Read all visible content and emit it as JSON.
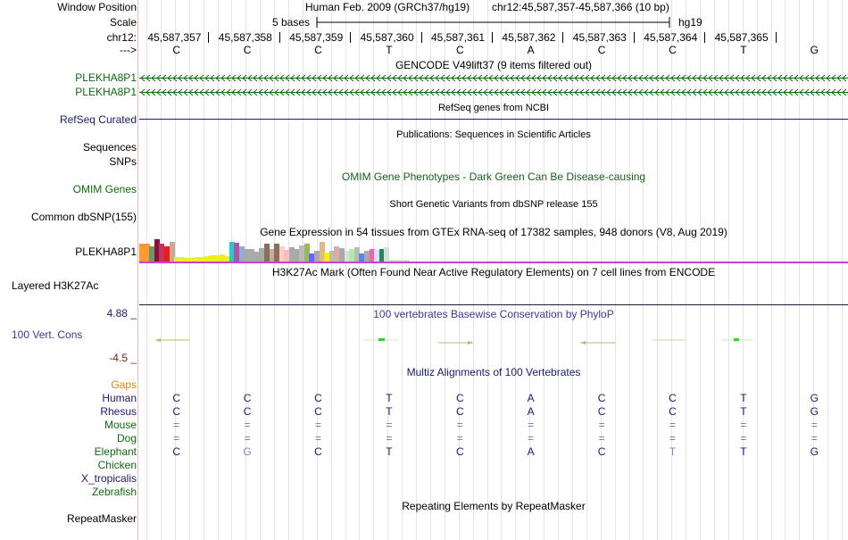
{
  "labels": {
    "window_position": "Window Position",
    "scale": "Scale",
    "chrom": "chr12:",
    "arrow": "--->",
    "plekha1": "PLEKHA8P1",
    "plekha2": "PLEKHA8P1",
    "refseq": "RefSeq Curated",
    "sequences": "Sequences",
    "snps": "SNPs",
    "omim": "OMIM Genes",
    "dbsnp": "Common dbSNP(155)",
    "gtex_gene": "PLEKHA8P1",
    "h3k27ac": "Layered H3K27Ac",
    "cons_max": "4.88 _",
    "cons_label": "100 Vert. Cons",
    "cons_min": "-4.5 _",
    "gaps": "Gaps",
    "species": [
      "Human",
      "Rhesus",
      "Mouse",
      "Dog",
      "Elephant",
      "Chicken",
      "X_tropicalis",
      "Zebrafish"
    ],
    "repeatmasker": "RepeatMasker"
  },
  "header": {
    "assembly": "Human Feb. 2009 (GRCh37/hg19)",
    "region": "chr12:45,587,357-45,587,366 (10 bp)",
    "scale_text": "5 bases",
    "scale_db": "hg19"
  },
  "positions": [
    "45,587,357",
    "45,587,358",
    "45,587,359",
    "45,587,360",
    "45,587,361",
    "45,587,362",
    "45,587,363",
    "45,587,364",
    "45,587,365"
  ],
  "bases": [
    "C",
    "C",
    "C",
    "T",
    "C",
    "A",
    "C",
    "C",
    "T",
    "G"
  ],
  "tracks": {
    "gencode": "GENCODE V49lift37 (9 items filtered out)",
    "refseq": "RefSeq genes from NCBI",
    "publications": "Publications: Sequences in Scientific Articles",
    "omim": "OMIM Gene Phenotypes - Dark Green Can Be Disease-causing",
    "dbsnp": "Short Genetic Variants from dbSNP release 155",
    "gtex": "Gene Expression in 54 tissues from GTEx RNA-seq of 17382 samples, 948 donors (V8, Aug 2019)",
    "h3k27ac": "H3K27Ac Mark (Often Found Near Active Regulatory Elements) on 7 cell lines from ENCODE",
    "phylop": "100 vertebrates Basewise Conservation by PhyloP",
    "multiz": "Multiz Alignments of 100 Vertebrates",
    "repeatmasker": "Repeating Elements by RepeatMasker"
  },
  "alignment": {
    "Human": [
      "C",
      "C",
      "C",
      "T",
      "C",
      "A",
      "C",
      "C",
      "T",
      "G"
    ],
    "Rhesus": [
      "C",
      "C",
      "C",
      "T",
      "C",
      "A",
      "C",
      "C",
      "T",
      "G"
    ],
    "Mouse": [
      "=",
      "=",
      "=",
      "=",
      "=",
      "=",
      "=",
      "=",
      "=",
      "="
    ],
    "Dog": [
      "=",
      "=",
      "=",
      "=",
      "=",
      "=",
      "=",
      "=",
      "=",
      "="
    ],
    "Elephant": [
      "C",
      "G",
      "C",
      "T",
      "C",
      "A",
      "C",
      "T",
      "T",
      "G"
    ]
  },
  "colors": {
    "navy": "#1a1a6e",
    "green": "#0d6b0d",
    "orange": "#e08a00",
    "magenta": "#d040d0",
    "maroon": "#7a1a1a"
  },
  "gtex_bars": [
    {
      "v": 20,
      "c": "#ff9933"
    },
    {
      "v": 20,
      "c": "#ff9933"
    },
    {
      "v": 17,
      "c": "#669966"
    },
    {
      "v": 25,
      "c": "#8b0f3e"
    },
    {
      "v": 20,
      "c": "#c8325a"
    },
    {
      "v": 17,
      "c": "#e81c1c"
    },
    {
      "v": 22,
      "c": "#c8a89a"
    },
    {
      "v": 5,
      "c": "#eeee22"
    },
    {
      "v": 5,
      "c": "#eeee22"
    },
    {
      "v": 4,
      "c": "#eeee22"
    },
    {
      "v": 4,
      "c": "#eeee22"
    },
    {
      "v": 5,
      "c": "#eeee22"
    },
    {
      "v": 5,
      "c": "#eeee22"
    },
    {
      "v": 6,
      "c": "#eeee22"
    },
    {
      "v": 7,
      "c": "#eeee22"
    },
    {
      "v": 7,
      "c": "#eeee22"
    },
    {
      "v": 8,
      "c": "#eeee22"
    },
    {
      "v": 6,
      "c": "#eeee22"
    },
    {
      "v": 22,
      "c": "#22cccc"
    },
    {
      "v": 21,
      "c": "#aa55aa"
    },
    {
      "v": 17,
      "c": "#99aacc"
    },
    {
      "v": 14,
      "c": "#aaaaaa"
    },
    {
      "v": 14,
      "c": "#aaaaaa"
    },
    {
      "v": 11,
      "c": "#aaaaaa"
    },
    {
      "v": 15,
      "c": "#aaaaaa"
    },
    {
      "v": 20,
      "c": "#8b6f5a"
    },
    {
      "v": 14,
      "c": "#c8a89a"
    },
    {
      "v": 20,
      "c": "#8b6f5a"
    },
    {
      "v": 17,
      "c": "#ffcccc"
    },
    {
      "v": 13,
      "c": "#ffbbbb"
    },
    {
      "v": 16,
      "c": "#aaaaaa"
    },
    {
      "v": 14,
      "c": "#aaaaaa"
    },
    {
      "v": 18,
      "c": "#bbbbbb"
    },
    {
      "v": 20,
      "c": "#99bb55"
    },
    {
      "v": 9,
      "c": "#6666ff"
    },
    {
      "v": 12,
      "c": "#aaaaaa"
    },
    {
      "v": 22,
      "c": "#ddbb88"
    },
    {
      "v": 10,
      "c": "#ffee00"
    },
    {
      "v": 12,
      "c": "#bbbbbb"
    },
    {
      "v": 17,
      "c": "#ddaaaa"
    },
    {
      "v": 15,
      "c": "#aaaaaa"
    },
    {
      "v": 12,
      "c": "#dddddd"
    },
    {
      "v": 14,
      "c": "#aaeeaa"
    },
    {
      "v": 16,
      "c": "#bbbbbb"
    },
    {
      "v": 9,
      "c": "#5588ee"
    },
    {
      "v": 12,
      "c": "#aaaaaa"
    },
    {
      "v": 14,
      "c": "#ee66aa"
    },
    {
      "v": 13,
      "c": "#ddddff"
    },
    {
      "v": 14,
      "c": "#228855"
    },
    {
      "v": 16,
      "c": "#dddddd"
    },
    {
      "v": 2,
      "c": "#dddddd"
    },
    {
      "v": 2,
      "c": "#dddddd"
    },
    {
      "v": 2,
      "c": "#dddddd"
    },
    {
      "v": 2,
      "c": "#dddddd"
    }
  ]
}
